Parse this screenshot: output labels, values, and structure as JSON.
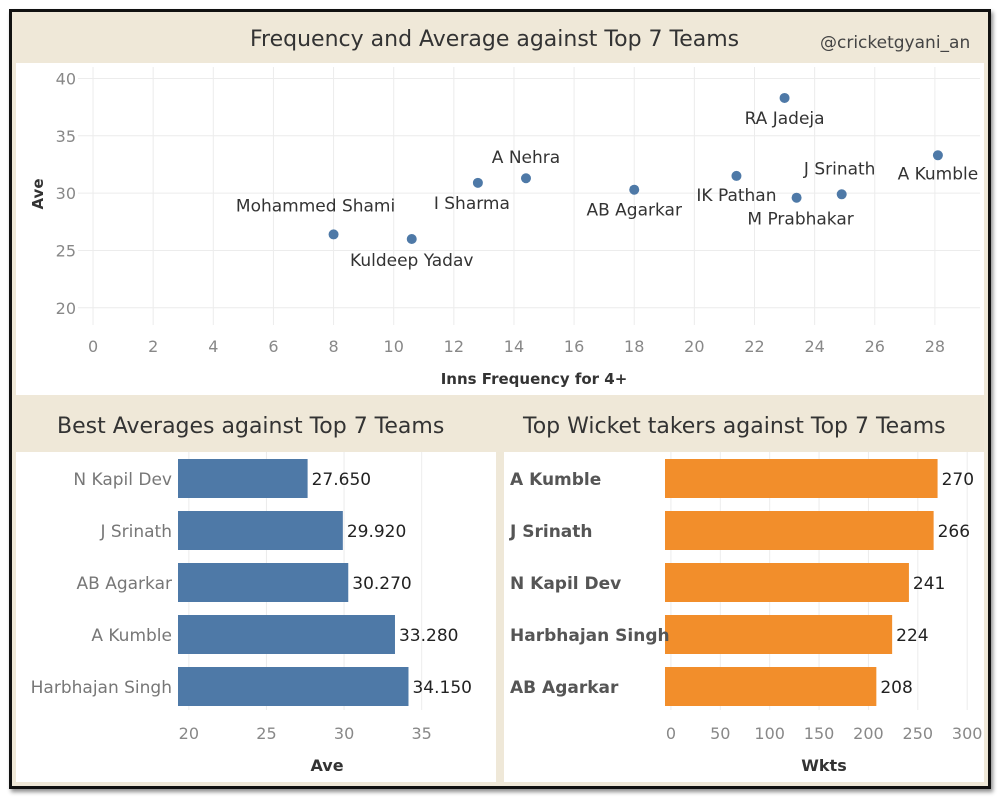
{
  "handle": "@cricketgyani_an",
  "colors": {
    "blue": "#4e79a7",
    "orange": "#f28e2b",
    "panel_bg": "#efe8d8",
    "grid": "#ececec"
  },
  "scatter": {
    "title": "Frequency and Average against Top 7 Teams",
    "chart_data": {
      "type": "scatter",
      "title": "Frequency and Average against Top 7 Teams",
      "xlabel": "Inns Frequency for 4+",
      "ylabel": "Ave",
      "xlim": [
        -0.5,
        29.5
      ],
      "ylim": [
        18.5,
        41
      ],
      "xticks": [
        0,
        2,
        4,
        6,
        8,
        10,
        12,
        14,
        16,
        18,
        20,
        22,
        24,
        26,
        28
      ],
      "yticks": [
        20,
        25,
        30,
        35,
        40
      ],
      "grid": true,
      "points": [
        {
          "name": "RA Jadeja",
          "x": 23.0,
          "y": 38.3
        },
        {
          "name": "A Kumble",
          "x": 28.1,
          "y": 33.3
        },
        {
          "name": "A Nehra",
          "x": 14.4,
          "y": 31.3
        },
        {
          "name": "IK Pathan",
          "x": 21.4,
          "y": 31.5
        },
        {
          "name": "I Sharma",
          "x": 12.8,
          "y": 30.9
        },
        {
          "name": "AB Agarkar",
          "x": 18.0,
          "y": 30.3
        },
        {
          "name": "J Srinath",
          "x": 24.9,
          "y": 29.9
        },
        {
          "name": "M Prabhakar",
          "x": 23.4,
          "y": 29.6
        },
        {
          "name": "Mohammed Shami",
          "x": 8.0,
          "y": 26.4
        },
        {
          "name": "Kuldeep Yadav",
          "x": 10.6,
          "y": 26.0
        }
      ]
    }
  },
  "averages": {
    "title": "Best Averages against Top 7 Teams",
    "chart_data": {
      "type": "bar",
      "orientation": "horizontal",
      "title": "Best Averages against Top 7 Teams",
      "xlabel": "Ave",
      "ylabel": "",
      "xlim": [
        19.3,
        38.5
      ],
      "xticks": [
        20,
        25,
        30,
        35
      ],
      "categories": [
        "N Kapil Dev",
        "J Srinath",
        "AB Agarkar",
        "A Kumble",
        "Harbhajan Singh"
      ],
      "values": [
        27.65,
        29.92,
        30.27,
        33.28,
        34.15
      ],
      "value_labels": [
        "27.650",
        "29.920",
        "30.270",
        "33.280",
        "34.150"
      ]
    }
  },
  "wickets": {
    "title": "Top Wicket takers against Top 7 Teams",
    "chart_data": {
      "type": "bar",
      "orientation": "horizontal",
      "title": "Top Wicket takers against Top 7 Teams",
      "xlabel": "Wkts",
      "ylabel": "",
      "xlim": [
        -6,
        316
      ],
      "xticks": [
        0,
        50,
        100,
        150,
        200,
        250,
        300
      ],
      "categories": [
        "A Kumble",
        "J Srinath",
        "N Kapil Dev",
        "Harbhajan Singh",
        "AB Agarkar"
      ],
      "values": [
        270,
        266,
        241,
        224,
        208
      ],
      "value_labels": [
        "270",
        "266",
        "241",
        "224",
        "208"
      ]
    }
  }
}
